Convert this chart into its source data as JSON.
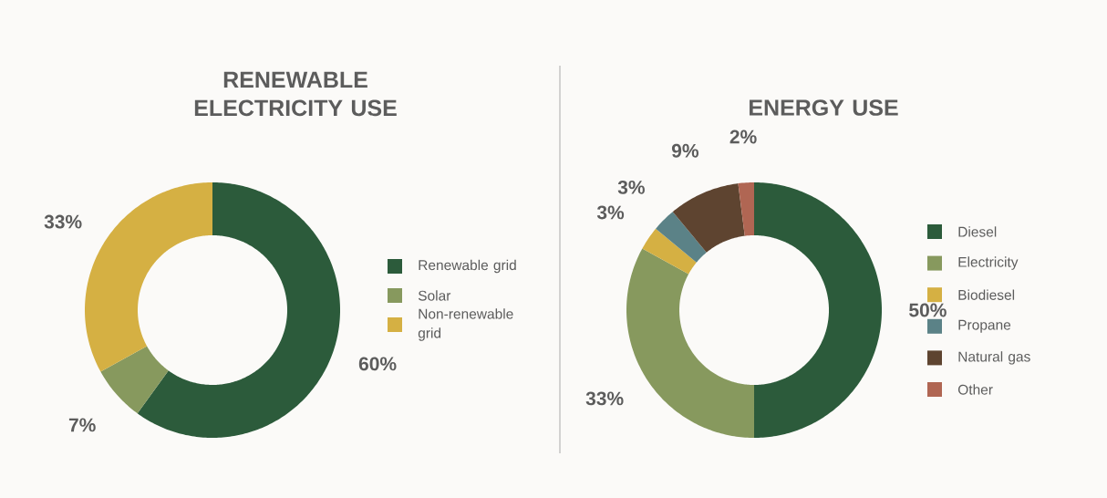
{
  "chart_data": [
    {
      "type": "donut",
      "title": "RENEWABLE ELECTRICITY USE",
      "categories": [
        "Renewable grid",
        "Solar",
        "Non-renewable grid"
      ],
      "values": [
        60,
        7,
        33
      ],
      "colors": [
        "#2c5b3b",
        "#87995e",
        "#d5b043"
      ],
      "value_labels": [
        "60%",
        "7%",
        "33%"
      ],
      "legend": "right"
    },
    {
      "type": "donut",
      "title": "ENERGY USE",
      "categories": [
        "Diesel",
        "Electricity",
        "Biodiesel",
        "Propane",
        "Natural gas",
        "Other"
      ],
      "values": [
        50,
        33,
        3,
        3,
        9,
        2
      ],
      "colors": [
        "#2c5b3b",
        "#87995e",
        "#d5b043",
        "#5b8287",
        "#5e4430",
        "#b06653"
      ],
      "value_labels": [
        "50%",
        "33%",
        "3%",
        "3%",
        "9%",
        "2%"
      ],
      "legend": "right"
    }
  ]
}
